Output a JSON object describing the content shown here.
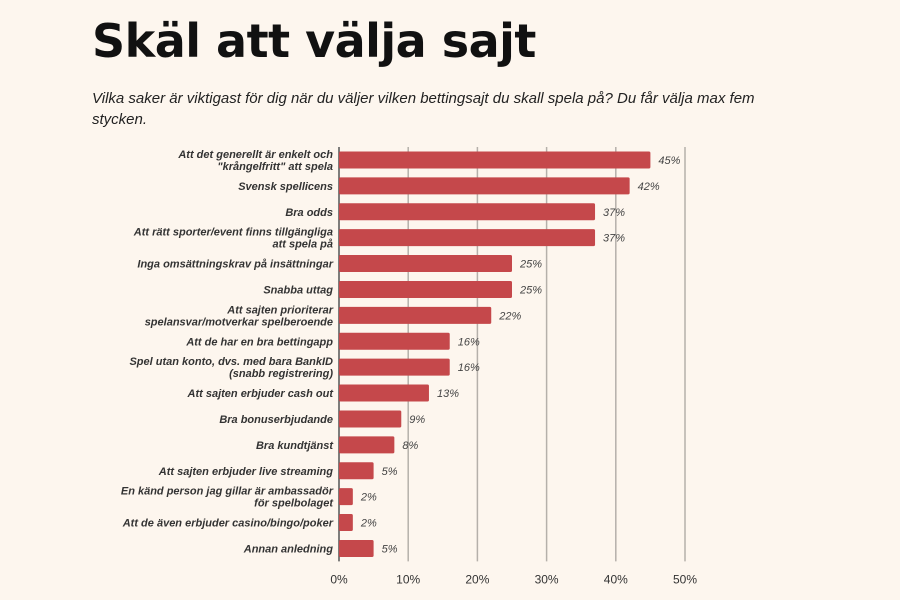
{
  "title": "Skäl att välja sajt",
  "subtitle": "Vilka saker är viktigast för dig när du väljer vilken bettingsajt du skall spela på? Du får välja max fem stycken.",
  "chart_data": {
    "type": "bar",
    "orientation": "horizontal",
    "categories": [
      [
        "Att det generellt är enkelt och",
        "\"krångelfritt\" att spela"
      ],
      [
        "Svensk spellicens"
      ],
      [
        "Bra odds"
      ],
      [
        "Att rätt sporter/event finns tillgängliga",
        "att spela på"
      ],
      [
        "Inga omsättningskrav på insättningar"
      ],
      [
        "Snabba uttag"
      ],
      [
        "Att sajten prioriterar",
        "spelansvar/motverkar spelberoende"
      ],
      [
        "Att de har en bra bettingapp"
      ],
      [
        "Spel utan konto, dvs. med bara BankID",
        "(snabb registrering)"
      ],
      [
        "Att sajten erbjuder cash out"
      ],
      [
        "Bra bonuserbjudande"
      ],
      [
        "Bra kundtjänst"
      ],
      [
        "Att sajten erbjuder live streaming"
      ],
      [
        "En känd person jag gillar är ambassadör",
        "för spelbolaget"
      ],
      [
        "Att de även erbjuder casino/bingo/poker"
      ],
      [
        "Annan anledning"
      ]
    ],
    "values": [
      45,
      42,
      37,
      37,
      25,
      25,
      22,
      16,
      16,
      13,
      9,
      8,
      5,
      2,
      2,
      5
    ],
    "value_labels": [
      "45%",
      "42%",
      "37%",
      "37%",
      "25%",
      "25%",
      "22%",
      "16%",
      "16%",
      "13%",
      "9%",
      "8%",
      "5%",
      "2%",
      "2%",
      "5%"
    ],
    "xlim": [
      0,
      50
    ],
    "xticks": [
      "0%",
      "10%",
      "20%",
      "30%",
      "40%",
      "50%"
    ],
    "grid": true,
    "colors": {
      "bar": "#c5484b",
      "grid": "#b5b0aa",
      "background": "#fdf6ee"
    }
  }
}
